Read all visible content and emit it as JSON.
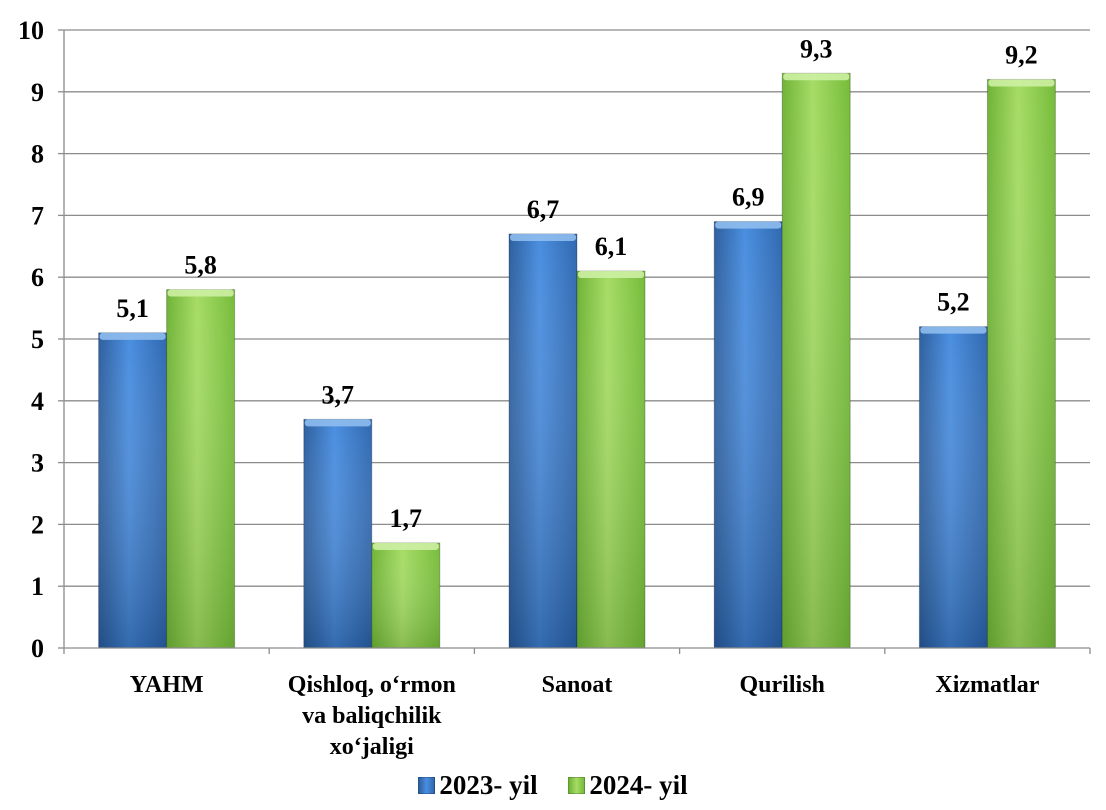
{
  "chart_data": {
    "type": "bar",
    "categories": [
      [
        "YAHM"
      ],
      [
        "Qishloq, o‘rmon",
        "va baliqchilik",
        "xo‘jaligi"
      ],
      [
        "Sanoat"
      ],
      [
        "Qurilish"
      ],
      [
        "Xizmatlar"
      ]
    ],
    "series": [
      {
        "name": "2023- yil",
        "values": [
          5.1,
          3.7,
          6.7,
          6.9,
          5.2
        ],
        "labels": [
          "5,1",
          "3,7",
          "6,7",
          "6,9",
          "5,2"
        ],
        "color": "#3d7fd0"
      },
      {
        "name": "2024- yil",
        "values": [
          5.8,
          1.7,
          6.1,
          9.3,
          9.2
        ],
        "labels": [
          "5,8",
          "1,7",
          "6,1",
          "9,3",
          "9,2"
        ],
        "color": "#92d050"
      }
    ],
    "yticks": [
      "0",
      "1",
      "2",
      "3",
      "4",
      "5",
      "6",
      "7",
      "8",
      "9",
      "10"
    ],
    "ylim": [
      0,
      10
    ],
    "grid": true,
    "legend_position": "bottom",
    "title": "",
    "xlabel": "",
    "ylabel": ""
  }
}
